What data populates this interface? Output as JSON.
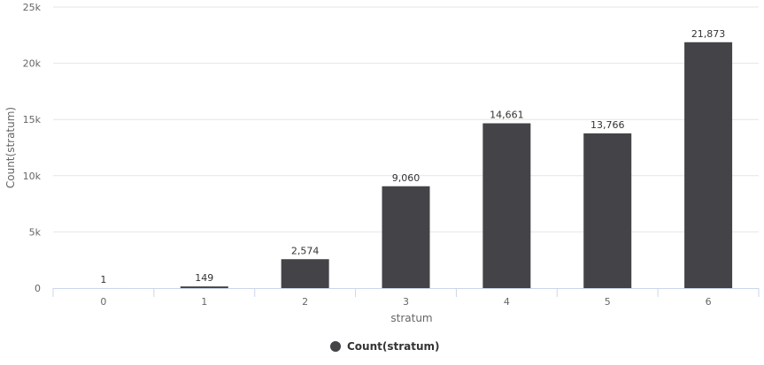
{
  "chart_data": {
    "type": "bar",
    "categories": [
      "0",
      "1",
      "2",
      "3",
      "4",
      "5",
      "6"
    ],
    "series": [
      {
        "name": "Count(stratum)",
        "values": [
          1,
          149,
          2574,
          9060,
          14661,
          13766,
          21873
        ]
      }
    ],
    "data_labels": [
      "1",
      "149",
      "2,574",
      "9,060",
      "14,661",
      "13,766",
      "21,873"
    ],
    "xlabel": "stratum",
    "ylabel": "Count(stratum)",
    "ylim": [
      0,
      25000
    ],
    "y_ticks": [
      {
        "value": 0,
        "label": "0"
      },
      {
        "value": 5000,
        "label": "5k"
      },
      {
        "value": 10000,
        "label": "10k"
      },
      {
        "value": 15000,
        "label": "15k"
      },
      {
        "value": 20000,
        "label": "20k"
      },
      {
        "value": 25000,
        "label": "25k"
      }
    ],
    "grid": true,
    "legend_position": "bottom-center",
    "bar_color": "#434348",
    "grid_color": "#e6e6e6",
    "axis_color": "#ccd6eb"
  }
}
